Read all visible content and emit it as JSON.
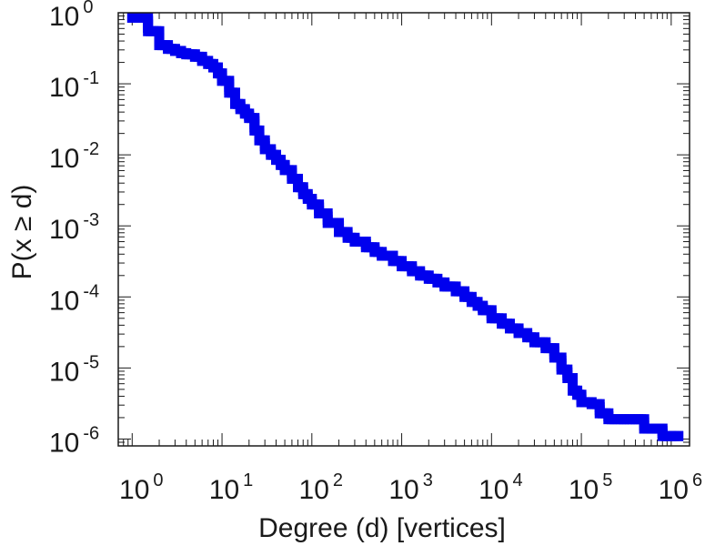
{
  "chart_data": {
    "type": "scatter",
    "title": "",
    "xlabel": "Degree (d) [vertices]",
    "ylabel": "P(x ≥ d)",
    "xscale": "log",
    "yscale": "log",
    "xlim": [
      0.7,
      1600000
    ],
    "ylim": [
      8e-07,
      1.0
    ],
    "grid": false,
    "legend": "none",
    "marker": "square",
    "color": "#0000ee",
    "x_ticks": [
      {
        "base": "10",
        "exp": "0"
      },
      {
        "base": "10",
        "exp": "1"
      },
      {
        "base": "10",
        "exp": "2"
      },
      {
        "base": "10",
        "exp": "3"
      },
      {
        "base": "10",
        "exp": "4"
      },
      {
        "base": "10",
        "exp": "5"
      },
      {
        "base": "10",
        "exp": "6"
      }
    ],
    "y_ticks": [
      {
        "base": "10",
        "exp": "0"
      },
      {
        "base": "10",
        "exp": "-1"
      },
      {
        "base": "10",
        "exp": "-2"
      },
      {
        "base": "10",
        "exp": "-3"
      },
      {
        "base": "10",
        "exp": "-4"
      },
      {
        "base": "10",
        "exp": "-5"
      },
      {
        "base": "10",
        "exp": "-6"
      }
    ],
    "series": [
      {
        "x": [
          1,
          1.5,
          2,
          2.5,
          3,
          3.5,
          4,
          5,
          6,
          7,
          8,
          9,
          10,
          12,
          14,
          16,
          18,
          20,
          23,
          26,
          30,
          35,
          40,
          45,
          50,
          60,
          70,
          80,
          90,
          100,
          120,
          150,
          200,
          250,
          300,
          400,
          500,
          600,
          800,
          1000,
          1300,
          1600,
          2000,
          2500,
          3000,
          4000,
          5000,
          6000,
          7000,
          8000,
          10000,
          13000,
          16000,
          20000,
          25000,
          30000,
          40000,
          50000,
          60000,
          70000,
          80000,
          90000,
          100000,
          130000,
          160000,
          200000,
          300000,
          400000,
          500000,
          600000,
          800000,
          1000000,
          1200000
        ],
        "y": [
          0.85,
          0.55,
          0.35,
          0.31,
          0.29,
          0.27,
          0.26,
          0.24,
          0.21,
          0.19,
          0.17,
          0.14,
          0.11,
          0.075,
          0.052,
          0.044,
          0.038,
          0.033,
          0.022,
          0.016,
          0.012,
          0.01,
          0.0085,
          0.0072,
          0.0061,
          0.0046,
          0.0035,
          0.0028,
          0.0024,
          0.002,
          0.0015,
          0.0011,
          0.00082,
          0.00068,
          0.0006,
          0.0005,
          0.00043,
          0.00038,
          0.00032,
          0.00027,
          0.00023,
          0.0002,
          0.00018,
          0.00016,
          0.00014,
          0.00012,
          0.0001,
          8.5e-05,
          7.5e-05,
          6.5e-05,
          5e-05,
          4.2e-05,
          3.6e-05,
          3.1e-05,
          2.7e-05,
          2.3e-05,
          1.9e-05,
          1.4e-05,
          9.5e-06,
          7.2e-06,
          4.8e-06,
          4.2e-06,
          3.3e-06,
          3.1e-06,
          2.3e-06,
          1.9e-06,
          1.9e-06,
          1.9e-06,
          1.4e-06,
          1.4e-06,
          1.1e-06,
          1.1e-06,
          1.1e-06
        ]
      }
    ]
  }
}
